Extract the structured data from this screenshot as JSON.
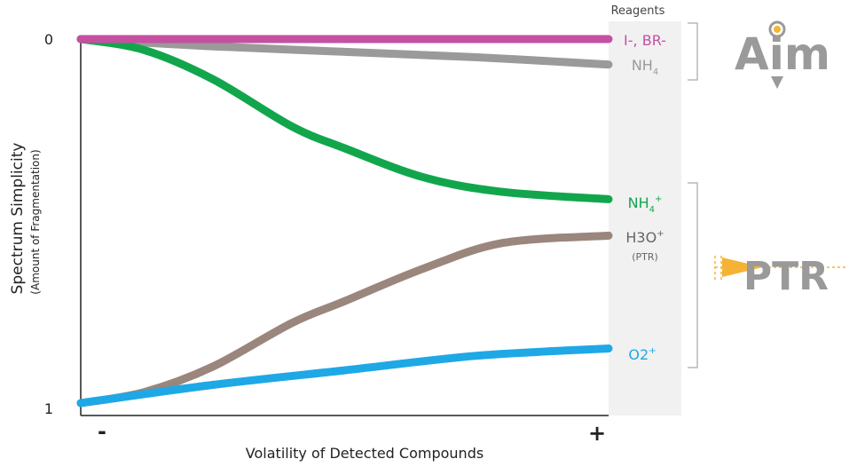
{
  "chart_data": {
    "type": "line",
    "xlabel": "Volatility of Detected Compounds",
    "ylabel": "Spectrum Simplicity",
    "ylabel_sub": "(Amount of Fragmentation)",
    "x_ticks": [
      "-",
      "+"
    ],
    "y_ticks": [
      "0",
      "1"
    ],
    "xlim": [
      0,
      1
    ],
    "ylim": [
      0,
      1
    ],
    "y_inverted": true,
    "legend_title": "Reagents",
    "series": [
      {
        "name": "I-, BR-",
        "color": "#c54fa0",
        "points": [
          [
            0,
            0
          ],
          [
            1,
            0
          ]
        ]
      },
      {
        "name": "NH4",
        "color": "#9a9a9a",
        "points": [
          [
            0,
            0
          ],
          [
            0.25,
            0.02
          ],
          [
            0.5,
            0.035
          ],
          [
            0.75,
            0.05
          ],
          [
            1,
            0.07
          ]
        ]
      },
      {
        "name": "NH4+",
        "color": "#12a64c",
        "points": [
          [
            0,
            0
          ],
          [
            0.12,
            0.03
          ],
          [
            0.25,
            0.11
          ],
          [
            0.4,
            0.24
          ],
          [
            0.5,
            0.3
          ],
          [
            0.65,
            0.38
          ],
          [
            0.8,
            0.42
          ],
          [
            1,
            0.44
          ]
        ]
      },
      {
        "name": "H3O+",
        "sublabel": "(PTR)",
        "color": "#9a867c",
        "points": [
          [
            0,
            1
          ],
          [
            0.12,
            0.97
          ],
          [
            0.25,
            0.9
          ],
          [
            0.4,
            0.78
          ],
          [
            0.5,
            0.72
          ],
          [
            0.65,
            0.63
          ],
          [
            0.8,
            0.56
          ],
          [
            1,
            0.54
          ]
        ]
      },
      {
        "name": "O2+",
        "color": "#1fa8e6",
        "points": [
          [
            0,
            1
          ],
          [
            0.25,
            0.95
          ],
          [
            0.5,
            0.91
          ],
          [
            0.75,
            0.87
          ],
          [
            1,
            0.85
          ]
        ]
      }
    ]
  },
  "brand": {
    "aim_logo": "Aim",
    "ptr_logo": "PTR"
  },
  "colors": {
    "band": "#f1f1f1",
    "bracket": "#b9b9b9",
    "aim": "#9a9a9a",
    "ptr": "#9a9a9a",
    "ptr_accent": "#f5b335"
  }
}
